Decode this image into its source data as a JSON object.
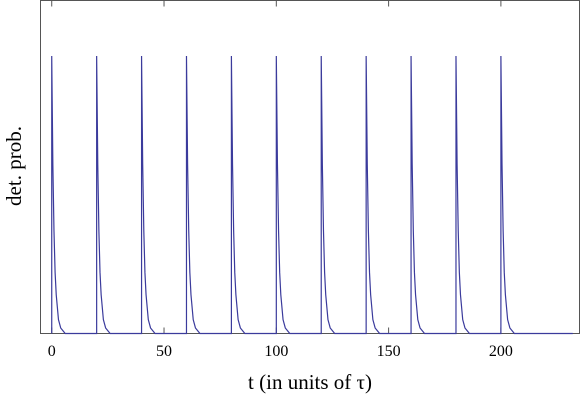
{
  "chart_data": {
    "type": "line",
    "xlabel": "t (in units of τ)",
    "ylabel": "det. prob.",
    "xlim": [
      -5,
      235
    ],
    "ylim": [
      0,
      1.2
    ],
    "xticks": [
      0,
      50,
      100,
      150,
      200
    ],
    "series": [
      {
        "color": "#3b3b9c",
        "x": [
          0,
          0,
          0.5,
          1,
          1.5,
          2,
          3,
          4,
          6,
          20,
          20,
          20.5,
          21,
          21.5,
          22,
          23,
          24,
          26,
          40,
          40,
          40.5,
          41,
          41.5,
          42,
          43,
          44,
          46,
          60,
          60,
          60.5,
          61,
          61.5,
          62,
          63,
          64,
          66,
          80,
          80,
          80.5,
          81,
          81.5,
          82,
          83,
          84,
          86,
          100,
          100,
          100.5,
          101,
          101.5,
          102,
          103,
          104,
          106,
          120,
          120,
          120.5,
          121,
          121.5,
          122,
          123,
          124,
          126,
          140,
          140,
          140.5,
          141,
          141.5,
          142,
          143,
          144,
          146,
          160,
          160,
          160.5,
          161,
          161.5,
          162,
          163,
          164,
          166,
          180,
          180,
          180.5,
          181,
          181.5,
          182,
          183,
          184,
          186,
          200,
          200,
          200.5,
          201,
          201.5,
          202,
          203,
          204,
          206,
          232
        ],
        "values": [
          0,
          1,
          0.61,
          0.37,
          0.22,
          0.14,
          0.05,
          0.02,
          0,
          0,
          1,
          0.61,
          0.37,
          0.22,
          0.14,
          0.05,
          0.02,
          0,
          0,
          1,
          0.61,
          0.37,
          0.22,
          0.14,
          0.05,
          0.02,
          0,
          0,
          1,
          0.61,
          0.37,
          0.22,
          0.14,
          0.05,
          0.02,
          0,
          0,
          1,
          0.61,
          0.37,
          0.22,
          0.14,
          0.05,
          0.02,
          0,
          0,
          1,
          0.61,
          0.37,
          0.22,
          0.14,
          0.05,
          0.02,
          0,
          0,
          1,
          0.61,
          0.37,
          0.22,
          0.14,
          0.05,
          0.02,
          0,
          0,
          1,
          0.61,
          0.37,
          0.22,
          0.14,
          0.05,
          0.02,
          0,
          0,
          1,
          0.61,
          0.37,
          0.22,
          0.14,
          0.05,
          0.02,
          0,
          0,
          1,
          0.61,
          0.37,
          0.22,
          0.14,
          0.05,
          0.02,
          0,
          0,
          1,
          0.61,
          0.37,
          0.22,
          0.14,
          0.05,
          0.02,
          0,
          0
        ]
      }
    ]
  }
}
